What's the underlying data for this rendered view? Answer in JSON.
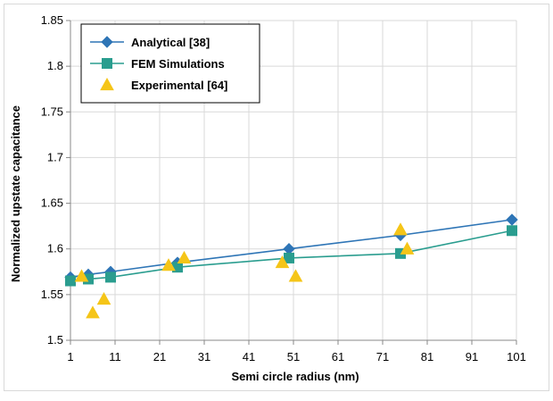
{
  "chart_data": {
    "type": "line",
    "xlabel": "Semi circle radius (nm)",
    "ylabel": "Normalized upstate capacitance",
    "xlim": [
      1,
      101
    ],
    "ylim": [
      1.5,
      1.85
    ],
    "x_ticks": [
      "1",
      "11",
      "21",
      "31",
      "41",
      "51",
      "61",
      "71",
      "81",
      "91",
      "101"
    ],
    "y_ticks": [
      "1.5",
      "1.55",
      "1.6",
      "1.65",
      "1.7",
      "1.75",
      "1.8",
      "1.85"
    ],
    "grid": true,
    "legend_position": "top-left",
    "series": [
      {
        "name": "Analytical [38]",
        "style": "line-diamond",
        "color": "#2E75B6",
        "x": [
          1,
          5,
          10,
          25,
          50,
          75,
          100
        ],
        "y": [
          1.569,
          1.572,
          1.575,
          1.585,
          1.6,
          1.615,
          1.632
        ]
      },
      {
        "name": "FEM Simulations",
        "style": "line-square",
        "color": "#2A9D8F",
        "x": [
          1,
          5,
          10,
          25,
          50,
          75,
          100
        ],
        "y": [
          1.565,
          1.567,
          1.569,
          1.58,
          1.59,
          1.595,
          1.62
        ]
      },
      {
        "name": "Experimental [64]",
        "style": "triangle",
        "color": "#F5C518",
        "x": [
          3.5,
          6,
          8.5,
          23,
          26.5,
          48.5,
          51.5,
          75,
          76.5
        ],
        "y": [
          1.57,
          1.53,
          1.545,
          1.582,
          1.59,
          1.585,
          1.57,
          1.621,
          1.6
        ]
      }
    ]
  }
}
